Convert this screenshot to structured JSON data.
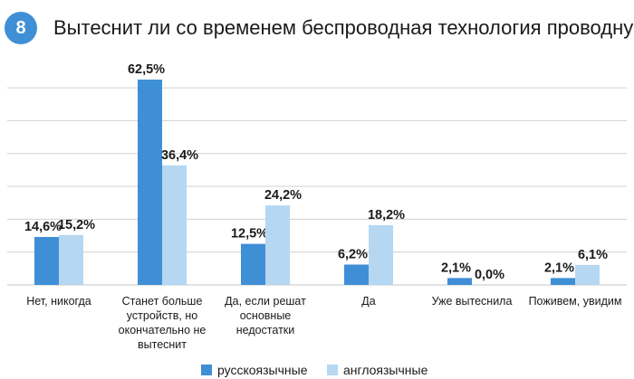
{
  "question_number": "8",
  "title": "Вытеснит ли со временем беспроводная технология проводную?",
  "colors": {
    "badge": "#3f8fd6",
    "series_dark": "#3f8fd6",
    "series_light": "#b6d7f1",
    "grid": "#d0d0d0"
  },
  "chart_data": {
    "type": "bar",
    "categories": [
      "Нет, никогда",
      "Станет больше устройств, но окончательно не вытеснит",
      "Да, если решат основные недостатки",
      "Да",
      "Уже вытеснила",
      "Поживем, увидим"
    ],
    "series": [
      {
        "name": "русскоязычные",
        "values": [
          14.6,
          62.5,
          12.5,
          6.2,
          2.1,
          2.1
        ],
        "labels": [
          "14,6%",
          "62,5%",
          "12,5%",
          "6,2%",
          "2,1%",
          "2,1%"
        ]
      },
      {
        "name": "англоязычные",
        "values": [
          15.2,
          36.4,
          24.2,
          18.2,
          0.0,
          6.1
        ],
        "labels": [
          "15,2%",
          "36,4%",
          "24,2%",
          "18,2%",
          "0,0%",
          "6,1%"
        ]
      }
    ],
    "ylim": [
      0,
      70
    ],
    "grid": true,
    "legend_position": "bottom"
  }
}
